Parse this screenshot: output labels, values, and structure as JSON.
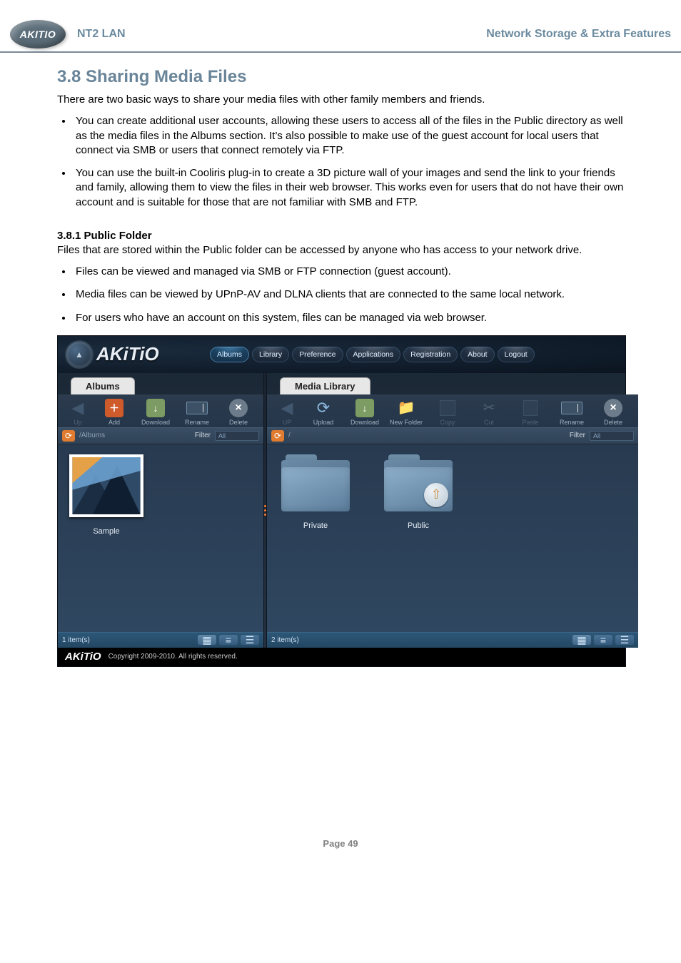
{
  "header": {
    "brand": "AKITIO",
    "product": "NT2 LAN",
    "section": "Network Storage & Extra Features"
  },
  "doc": {
    "heading": "3.8  Sharing Media Files",
    "intro": "There are two basic ways to share your media files with other family members and friends.",
    "bullets": [
      "You can create additional user accounts, allowing these users to access all of the files in the Public directory as well as the media files in the Albums section. It’s also possible to make use of the guest account for local users that connect via SMB or users that connect remotely via FTP.",
      "You can use the built-in Cooliris plug-in to create a 3D picture wall of your images and send the link to your friends and family, allowing them to view the files in their web browser. This works even for users that do not have their own account and is suitable for those that are not familiar with SMB and FTP."
    ],
    "sub_heading": "3.8.1   Public Folder",
    "sub_intro": "Files that are stored within the Public folder can be accessed by anyone who has access to your network drive.",
    "sub_bullets": [
      "Files can be viewed and managed via SMB or FTP connection (guest account).",
      "Media files can be viewed by UPnP-AV and DLNA clients that are connected to the same local network.",
      "For users who have an account on this system, files can be managed via web browser."
    ]
  },
  "screenshot": {
    "brand": "AKiTiO",
    "brand_badge_glyph": "▲",
    "nav": {
      "items": [
        "Albums",
        "Library",
        "Preference",
        "Applications",
        "Registration",
        "About",
        "Logout"
      ],
      "active_index": 0
    },
    "left_panel": {
      "tab": "Albums",
      "toolbar": [
        {
          "name": "up",
          "label": "Up",
          "icon": "arrow-left",
          "faded": true,
          "width": "narrow"
        },
        {
          "name": "add",
          "label": "Add",
          "icon": "add"
        },
        {
          "name": "download",
          "label": "Download",
          "icon": "download"
        },
        {
          "name": "rename",
          "label": "Rename",
          "icon": "rename"
        },
        {
          "name": "delete",
          "label": "Delete",
          "icon": "delete"
        }
      ],
      "path": "/Albums",
      "filter_label": "Filter",
      "filter_value": "All",
      "items": [
        {
          "name": "Sample",
          "type": "thumbnail"
        }
      ],
      "status_count": "1 item(s)"
    },
    "right_panel": {
      "tab": "Media Library",
      "toolbar": [
        {
          "name": "up",
          "label": "UP",
          "icon": "arrow-left",
          "faded": true,
          "width": "narrow"
        },
        {
          "name": "upload",
          "label": "Upload",
          "icon": "refresh"
        },
        {
          "name": "download",
          "label": "Download",
          "icon": "download"
        },
        {
          "name": "newfolder",
          "label": "New Folder",
          "icon": "newfolder"
        },
        {
          "name": "copy",
          "label": "Copy",
          "icon": "copy",
          "faded": true
        },
        {
          "name": "cut",
          "label": "Cut",
          "icon": "cut",
          "faded": true
        },
        {
          "name": "paste",
          "label": "Paste",
          "icon": "paste",
          "faded": true
        },
        {
          "name": "rename",
          "label": "Rename",
          "icon": "rename"
        },
        {
          "name": "delete",
          "label": "Delete",
          "icon": "delete"
        }
      ],
      "path": "/",
      "filter_label": "Filter",
      "filter_value": "All",
      "items": [
        {
          "name": "Private",
          "type": "folder",
          "emblem": false
        },
        {
          "name": "Public",
          "type": "folder",
          "emblem": true,
          "emblem_glyph": "⇧"
        }
      ],
      "status_count": "2 item(s)"
    },
    "footer": {
      "brand": "AKiTiO",
      "text": "Copyright 2009-2010. All rights reserved."
    },
    "colors": {
      "accent_orange": "#e07b2f",
      "toolbar_text": "#9fb0c0",
      "nav_text": "#e0eefb",
      "body_bg_top": "#1b2836",
      "body_bg_bottom": "#243446",
      "status_bg": "#2d5778"
    }
  },
  "footer_page": "Page 49"
}
